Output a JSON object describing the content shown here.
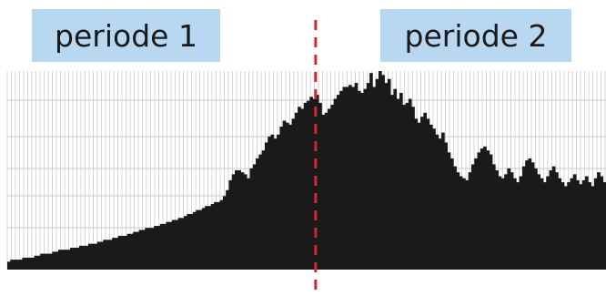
{
  "labels": {
    "period_1": "periode 1",
    "period_2": "periode 2"
  },
  "colors": {
    "label_background": "#b8d8f1",
    "bars": "#1a1a1a",
    "grid": "#bdbdbd",
    "divider": "#d9262c"
  },
  "chart_data": {
    "type": "bar",
    "grid": true,
    "ylim": [
      0,
      100
    ],
    "divider_at_index": 103,
    "series": [
      {
        "values": [
          4,
          5,
          5,
          5,
          5,
          6,
          6,
          6,
          6,
          7,
          7,
          8,
          8,
          8,
          8,
          9,
          9,
          10,
          10,
          10,
          10,
          11,
          11,
          11,
          12,
          12,
          12,
          13,
          13,
          13,
          14,
          14,
          15,
          15,
          15,
          16,
          16,
          17,
          17,
          17,
          18,
          18,
          19,
          19,
          20,
          20,
          21,
          21,
          21,
          22,
          22,
          23,
          23,
          24,
          24,
          25,
          25,
          26,
          26,
          27,
          28,
          28,
          29,
          30,
          30,
          31,
          32,
          32,
          33,
          34,
          34,
          35,
          37,
          40,
          45,
          48,
          50,
          50,
          49,
          48,
          46,
          51,
          53,
          56,
          58,
          60,
          64,
          67,
          68,
          66,
          68,
          72,
          75,
          74,
          73,
          76,
          79,
          82,
          81,
          84,
          85,
          87,
          86,
          88,
          84,
          78,
          79,
          81,
          83,
          86,
          88,
          90,
          92,
          92,
          93,
          92,
          94,
          90,
          89,
          91,
          94,
          99,
          92,
          96,
          100,
          98,
          94,
          96,
          88,
          91,
          86,
          89,
          83,
          84,
          86,
          82,
          76,
          74,
          77,
          79,
          76,
          73,
          71,
          68,
          66,
          69,
          64,
          59,
          56,
          52,
          49,
          47,
          46,
          45,
          49,
          53,
          56,
          59,
          61,
          62,
          60,
          58,
          53,
          50,
          47,
          46,
          48,
          51,
          49,
          46,
          44,
          47,
          52,
          55,
          56,
          54,
          51,
          48,
          46,
          44,
          47,
          50,
          52,
          49,
          46,
          44,
          42,
          44,
          46,
          48,
          45,
          43,
          45,
          47,
          44,
          42,
          46,
          49,
          47,
          44
        ]
      }
    ]
  }
}
